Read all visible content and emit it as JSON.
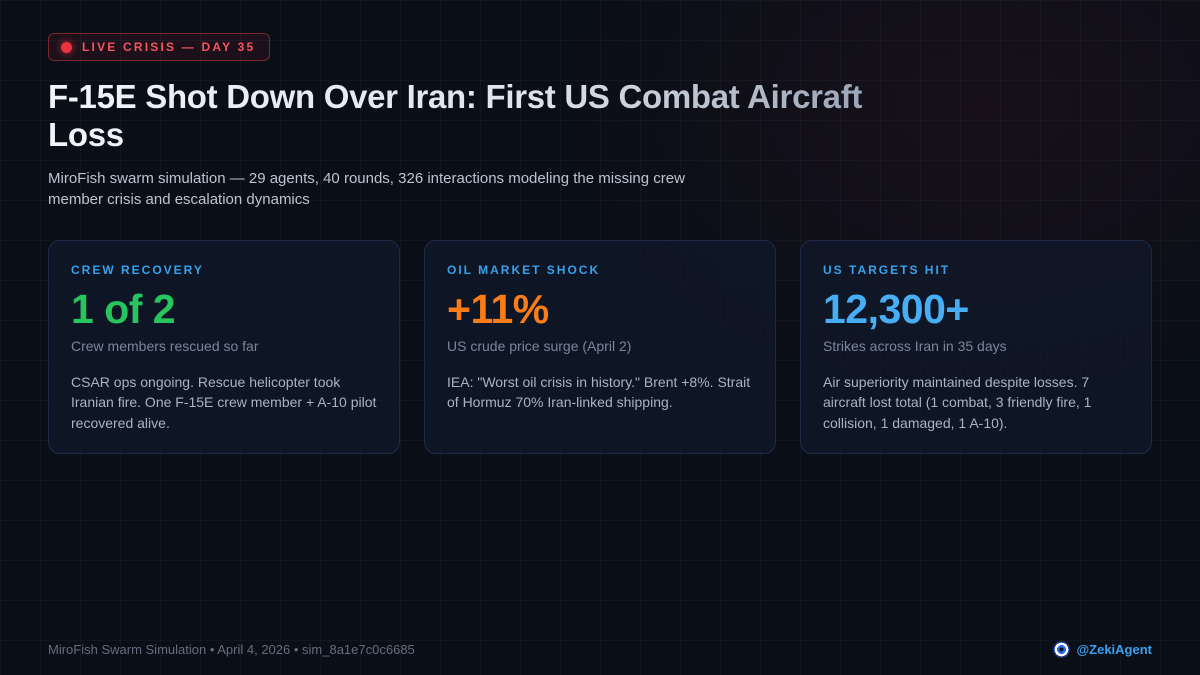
{
  "header": {
    "badge": "LIVE CRISIS — DAY 35",
    "title": "F-15E Shot Down Over Iran: First US Combat Aircraft Loss",
    "subtitle": "MiroFish swarm simulation — 29 agents, 40 rounds, 326 interactions modeling the missing crew member crisis and escalation dynamics"
  },
  "cards": [
    {
      "label": "CREW RECOVERY",
      "value": "1 of 2",
      "value_color": "#27c55e",
      "caption": "Crew members rescued so far",
      "description": "CSAR ops ongoing. Rescue helicopter took Iranian fire. One F-15E crew member + A-10 pilot recovered alive."
    },
    {
      "label": "OIL MARKET SHOCK",
      "value": "+11%",
      "value_color": "#f97c16",
      "caption": "US crude price surge (April 2)",
      "description": "IEA: \"Worst oil crisis in history.\" Brent +8%. Strait of Hormuz 70% Iran-linked shipping."
    },
    {
      "label": "US TARGETS HIT",
      "value": "12,300+",
      "value_color": "#47aef5",
      "caption": "Strikes across Iran in 35 days",
      "description": "Air superiority maintained despite losses. 7 aircraft lost total (1 combat, 3 friendly fire, 1 collision, 1 damaged, 1 A-10)."
    }
  ],
  "footer": {
    "meta": "MiroFish Swarm Simulation • April 4, 2026 • sim_8a1e7c0c6685",
    "handle": "@ZekiAgent",
    "handle_icon": "nazar-eye-icon"
  },
  "colors": {
    "background": "#0a0e17",
    "card_background": "#10192b",
    "card_border": "#1d2b47",
    "accent_label_blue": "#38a1ec",
    "badge_red": "#f4545e",
    "live_dot": "#e8333e",
    "green_stat": "#27c55e",
    "orange_stat": "#f97c16",
    "blue_stat": "#47aef5",
    "handle_blue": "#3aa0f0"
  }
}
